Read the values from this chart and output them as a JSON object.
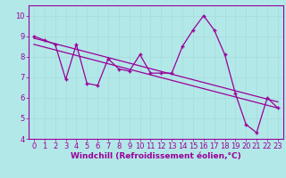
{
  "x": [
    0,
    1,
    2,
    3,
    4,
    5,
    6,
    7,
    8,
    9,
    10,
    11,
    12,
    13,
    14,
    15,
    16,
    17,
    18,
    19,
    20,
    21,
    22,
    23
  ],
  "y_main": [
    9.0,
    8.8,
    8.6,
    6.9,
    8.6,
    6.7,
    6.6,
    7.9,
    7.4,
    7.3,
    8.1,
    7.2,
    7.2,
    7.2,
    8.5,
    9.3,
    10.0,
    9.3,
    8.1,
    6.2,
    4.7,
    4.3,
    6.0,
    5.5
  ],
  "trend1_x": [
    0,
    23
  ],
  "trend1_y": [
    8.9,
    5.8
  ],
  "trend2_x": [
    0,
    23
  ],
  "trend2_y": [
    8.6,
    5.5
  ],
  "line_color": "#990099",
  "bg_color": "#b3e8e8",
  "grid_color": "#aadddd",
  "xlabel": "Windchill (Refroidissement éolien,°C)",
  "xlim": [
    -0.5,
    23.5
  ],
  "ylim": [
    4,
    10.5
  ],
  "yticks": [
    4,
    5,
    6,
    7,
    8,
    9,
    10
  ],
  "xticks": [
    0,
    1,
    2,
    3,
    4,
    5,
    6,
    7,
    8,
    9,
    10,
    11,
    12,
    13,
    14,
    15,
    16,
    17,
    18,
    19,
    20,
    21,
    22,
    23
  ],
  "xlabel_fontsize": 6.5,
  "tick_fontsize": 6.0,
  "figwidth": 3.2,
  "figheight": 2.0,
  "dpi": 100
}
